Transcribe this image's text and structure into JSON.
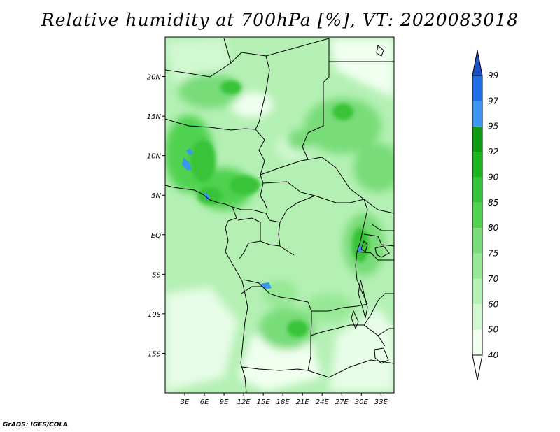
{
  "title": "Relative humidity at 700hPa [%], VT: 2020083018",
  "footer": "GrADS: IGES/COLA",
  "map": {
    "lon_range": [
      0,
      35
    ],
    "lat_range": [
      -20,
      25
    ],
    "lat_ticks": [
      {
        "value": 20,
        "label": "20N"
      },
      {
        "value": 15,
        "label": "15N"
      },
      {
        "value": 10,
        "label": "10N"
      },
      {
        "value": 5,
        "label": "5N"
      },
      {
        "value": 0,
        "label": "EQ"
      },
      {
        "value": -5,
        "label": "5S"
      },
      {
        "value": -10,
        "label": "10S"
      },
      {
        "value": -15,
        "label": "15S"
      }
    ],
    "lon_ticks": [
      {
        "value": 3,
        "label": "3E"
      },
      {
        "value": 6,
        "label": "6E"
      },
      {
        "value": 9,
        "label": "9E"
      },
      {
        "value": 12,
        "label": "12E"
      },
      {
        "value": 15,
        "label": "15E"
      },
      {
        "value": 18,
        "label": "18E"
      },
      {
        "value": 21,
        "label": "21E"
      },
      {
        "value": 24,
        "label": "24E"
      },
      {
        "value": 27,
        "label": "27E"
      },
      {
        "value": 30,
        "label": "30E"
      },
      {
        "value": 33,
        "label": "33E"
      }
    ]
  },
  "colorbar": {
    "levels": [
      {
        "label": "40",
        "color": "#f0fff0"
      },
      {
        "label": "50",
        "color": "#d2f8d2"
      },
      {
        "label": "60",
        "color": "#b4f0b4"
      },
      {
        "label": "70",
        "color": "#96e896"
      },
      {
        "label": "75",
        "color": "#78dc78"
      },
      {
        "label": "80",
        "color": "#50d250"
      },
      {
        "label": "85",
        "color": "#37c337"
      },
      {
        "label": "90",
        "color": "#1eb41e"
      },
      {
        "label": "92",
        "color": "#0f9b0f"
      },
      {
        "label": "95",
        "color": "#3c96f0"
      },
      {
        "label": "97",
        "color": "#1e6ee6"
      },
      {
        "label": "99",
        "color": "#1e50c8"
      }
    ]
  }
}
